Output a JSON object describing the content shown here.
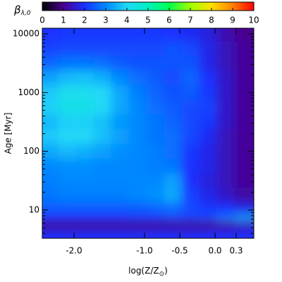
{
  "chart_data": {
    "type": "heatmap",
    "xlabel": "log(Z/Z",
    "xlabel_sub": "⊙",
    "xlabel_end": ")",
    "ylabel": "Age [Myr]",
    "xlim": [
      -2.45,
      0.55
    ],
    "xticks": [
      {
        "value": -2,
        "label": "-2.0"
      },
      {
        "value": -1,
        "label": "-1.0"
      },
      -0.5,
      {
        "value": 0,
        "label": "0.0"
      },
      0.3
    ],
    "ylim": [
      3.3,
      12500
    ],
    "yticks": [
      10,
      100,
      1000,
      10000
    ],
    "ylog": true,
    "colorbar": {
      "label": "β",
      "label_sub": "λ,0",
      "clim": [
        0,
        10
      ],
      "ticks": [
        0,
        1,
        2,
        3,
        4,
        5,
        6,
        7,
        8,
        9,
        10
      ],
      "colormap": [
        "#000000",
        "#4a0090",
        "#1a30ff",
        "#0088ff",
        "#20d8f8",
        "#00f0c0",
        "#00ff50",
        "#a0ff00",
        "#ffe000",
        "#ff8000",
        "#ff0000"
      ]
    },
    "x": [
      -2.35,
      -2.1,
      -1.85,
      -1.6,
      -1.35,
      -1.1,
      -0.85,
      -0.6,
      -0.35,
      -0.1,
      0.15,
      0.4
    ],
    "y": [
      10000,
      5600,
      3200,
      1800,
      1000,
      560,
      320,
      180,
      100,
      56,
      32,
      18,
      10,
      7.5,
      5.6,
      4.5,
      3.5
    ],
    "z": [
      [
        2.0,
        2.1,
        2.1,
        2.1,
        2.1,
        2.1,
        2.1,
        2.0,
        1.9,
        1.7,
        1.3,
        1.0
      ],
      [
        2.2,
        2.3,
        2.3,
        2.3,
        2.3,
        2.3,
        2.3,
        2.4,
        2.3,
        1.8,
        1.4,
        1.1
      ],
      [
        2.6,
        2.8,
        2.8,
        2.7,
        2.5,
        2.4,
        2.4,
        2.4,
        2.4,
        1.8,
        1.4,
        1.1
      ],
      [
        3.3,
        3.6,
        3.7,
        3.5,
        3.0,
        2.7,
        2.5,
        2.3,
        2.6,
        2.0,
        1.5,
        1.1
      ],
      [
        3.8,
        4.2,
        4.2,
        4.0,
        3.4,
        2.9,
        2.6,
        2.4,
        2.5,
        2.1,
        1.5,
        1.1
      ],
      [
        3.9,
        4.3,
        4.3,
        4.0,
        3.4,
        3.0,
        2.7,
        2.5,
        2.3,
        2.2,
        1.5,
        1.1
      ],
      [
        3.6,
        3.9,
        3.9,
        3.7,
        3.2,
        3.0,
        2.8,
        2.6,
        2.3,
        2.1,
        1.5,
        1.1
      ],
      [
        3.8,
        4.0,
        4.0,
        3.7,
        3.3,
        3.0,
        2.8,
        2.7,
        2.3,
        1.9,
        1.4,
        1.1
      ],
      [
        3.4,
        3.6,
        3.5,
        3.3,
        3.1,
        3.0,
        2.9,
        2.7,
        2.1,
        1.8,
        1.4,
        1.1
      ],
      [
        3.0,
        3.1,
        3.1,
        3.0,
        3.0,
        3.0,
        2.9,
        2.8,
        2.0,
        1.8,
        1.4,
        1.1
      ],
      [
        2.9,
        3.0,
        3.0,
        3.0,
        3.0,
        3.0,
        3.0,
        3.3,
        2.0,
        1.7,
        1.4,
        1.1
      ],
      [
        2.8,
        2.9,
        2.9,
        2.9,
        2.9,
        3.0,
        3.1,
        3.4,
        2.2,
        1.8,
        1.5,
        1.2
      ],
      [
        2.5,
        2.5,
        2.5,
        2.5,
        2.5,
        2.5,
        2.6,
        2.7,
        2.3,
        2.1,
        2.0,
        1.8
      ],
      [
        2.0,
        2.0,
        2.0,
        2.0,
        2.0,
        2.1,
        2.1,
        2.2,
        2.2,
        2.3,
        2.8,
        3.2
      ],
      [
        0.9,
        0.9,
        0.9,
        0.9,
        0.9,
        0.9,
        0.9,
        0.9,
        0.9,
        0.9,
        1.1,
        1.3
      ],
      [
        1.6,
        1.6,
        1.6,
        1.6,
        1.6,
        1.6,
        1.6,
        1.6,
        1.6,
        1.6,
        1.6,
        1.7
      ],
      [
        2.0,
        2.0,
        2.0,
        2.0,
        2.0,
        2.0,
        2.0,
        2.0,
        2.0,
        2.0,
        2.0,
        2.0
      ]
    ]
  }
}
